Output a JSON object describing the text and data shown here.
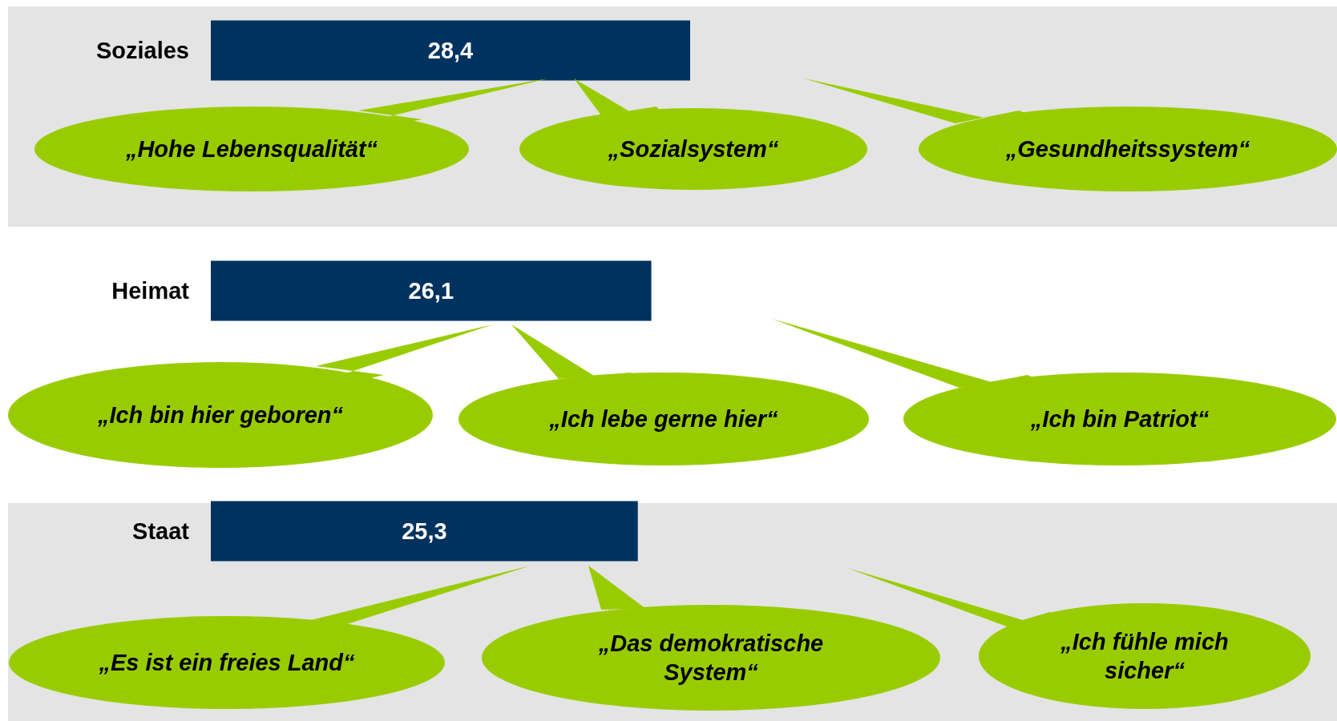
{
  "chart_data": {
    "type": "bar",
    "orientation": "horizontal",
    "categories": [
      "Soziales",
      "Heimat",
      "Staat"
    ],
    "values": [
      28.4,
      26.1,
      25.3
    ],
    "color": "#00325f",
    "value_labels": [
      "28,4",
      "26,1",
      "25,3"
    ],
    "annotations": [
      "„Hohe Lebensqualität“",
      "„Sozialsystem“",
      "„Gesundheitssystem“",
      "„Ich bin hier geboren“",
      "„Ich lebe gerne hier“",
      "„Ich bin Patriot“",
      "„Es ist ein freies Land“",
      "„Das demokratische System“",
      "„Ich fühle mich sicher“"
    ]
  }
}
